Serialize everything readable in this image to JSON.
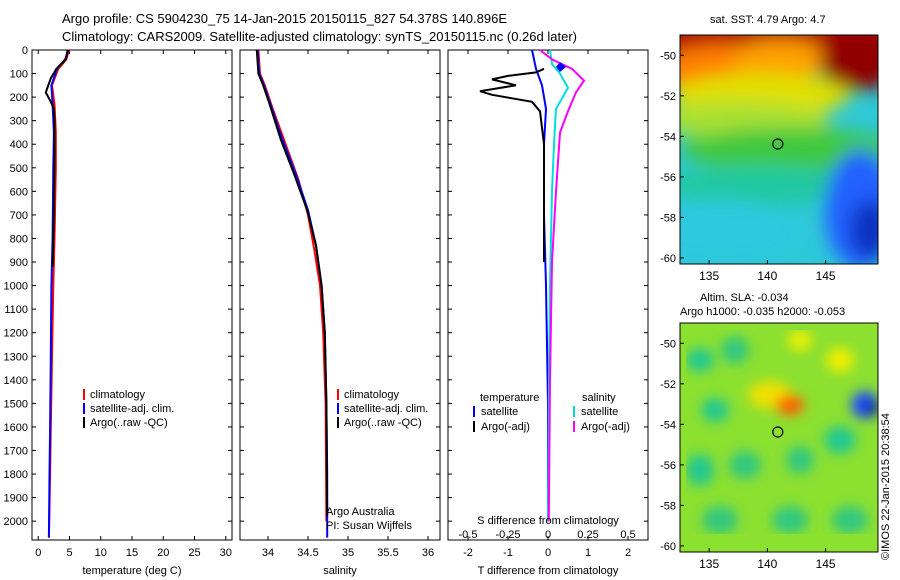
{
  "header": {
    "title_line1": "Argo profile: CS 5904230_75 14-Jan-2015 20150115_827 54.378S 140.896E",
    "title_line2": "Climatology: CARS2009. Satellite-adjusted climatology: synTS_20150115.nc (0.26d later)"
  },
  "colors": {
    "climatology": "#ff0000",
    "satellite": "#0000ff",
    "argo": "#000000",
    "sal_satellite": "#00dddd",
    "sal_argo": "#ff00ff"
  },
  "chart_data": [
    {
      "type": "line",
      "id": "temperature",
      "xlabel": "temperature (deg C)",
      "ylabel": "",
      "xlim": [
        -1,
        31
      ],
      "ylim": [
        2080,
        0
      ],
      "xticks": [
        0,
        5,
        10,
        15,
        20,
        25,
        30
      ],
      "yticks": [
        0,
        100,
        200,
        300,
        400,
        500,
        600,
        700,
        800,
        900,
        1000,
        1100,
        1200,
        1300,
        1400,
        1500,
        1600,
        1700,
        1800,
        1900,
        2000
      ],
      "legend": [
        "climatology",
        "satellite-adj. clim.",
        "Argo(..raw -QC)"
      ],
      "series": [
        {
          "name": "climatology",
          "color": "#ff0000",
          "x": [
            4.9,
            4.5,
            3.2,
            2.2,
            2.6,
            2.8,
            2.8,
            2.6,
            2.4,
            2.2,
            2.0,
            1.9,
            1.7
          ],
          "y": [
            0,
            40,
            80,
            150,
            230,
            350,
            500,
            800,
            1000,
            1300,
            1600,
            1800,
            2070
          ]
        },
        {
          "name": "satellite-adj. clim.",
          "color": "#0000ff",
          "x": [
            4.8,
            4.3,
            3.0,
            2.1,
            2.3,
            2.5,
            2.4,
            2.3,
            2.1,
            2.0,
            1.9,
            1.8,
            1.7
          ],
          "y": [
            0,
            40,
            80,
            150,
            230,
            350,
            500,
            800,
            1000,
            1300,
            1600,
            1800,
            2070
          ]
        },
        {
          "name": "Argo(..raw -QC)",
          "color": "#000000",
          "x": [
            4.7,
            4.4,
            2.9,
            2.0,
            1.2,
            1.6,
            2.0,
            2.5,
            2.6,
            2.6,
            2.5,
            2.3
          ],
          "y": [
            0,
            40,
            80,
            120,
            180,
            200,
            220,
            250,
            300,
            450,
            700,
            920
          ]
        }
      ]
    },
    {
      "type": "line",
      "id": "salinity",
      "xlabel": "salinity",
      "ylabel": "",
      "xlim": [
        33.65,
        36.15
      ],
      "ylim": [
        2080,
        0
      ],
      "xticks": [
        34,
        34.5,
        35,
        35.5,
        36
      ],
      "legend": [
        "climatology",
        "satellite-adj. clim.",
        "Argo(..raw -QC)"
      ],
      "annotation": [
        "Argo Australia",
        "PI: Susan Wijffels"
      ],
      "series": [
        {
          "name": "climatology",
          "color": "#ff0000",
          "x": [
            33.88,
            33.9,
            33.96,
            34.06,
            34.22,
            34.38,
            34.5,
            34.58,
            34.65,
            34.69,
            34.72,
            34.73
          ],
          "y": [
            0,
            100,
            150,
            250,
            400,
            550,
            700,
            850,
            1000,
            1200,
            1500,
            2000
          ]
        },
        {
          "name": "satellite-adj. clim.",
          "color": "#0000ff",
          "x": [
            33.87,
            33.89,
            33.95,
            34.03,
            34.18,
            34.35,
            34.5,
            34.6,
            34.67,
            34.71,
            34.73,
            34.74,
            34.74
          ],
          "y": [
            0,
            100,
            150,
            230,
            380,
            530,
            680,
            830,
            1000,
            1200,
            1500,
            1800,
            2070
          ]
        },
        {
          "name": "Argo(..raw -QC)",
          "color": "#000000",
          "x": [
            33.86,
            33.88,
            33.94,
            34.02,
            34.16,
            34.33,
            34.49,
            34.6,
            34.67,
            34.71,
            34.73,
            34.74
          ],
          "y": [
            0,
            100,
            150,
            230,
            380,
            530,
            680,
            830,
            1000,
            1200,
            1500,
            1980
          ]
        }
      ]
    },
    {
      "type": "line",
      "id": "difference",
      "xlabel": "T difference from climatology",
      "xlabel_top": "S difference from climatology",
      "xlim": [
        -2.5,
        2.5
      ],
      "ylim": [
        2080,
        0
      ],
      "xticks": [
        -2,
        -1,
        0,
        1,
        2
      ],
      "xtick_labels": [
        "-2",
        "-1",
        "0",
        "1",
        "2"
      ],
      "top_ticks": [
        -2,
        -1,
        0,
        1,
        2
      ],
      "top_tick_labels": [
        "-0.5",
        "-0.25",
        "0",
        "0.25",
        "0.5"
      ],
      "legend_left_title": "temperature",
      "legend_right_title": "salinity",
      "legend": [
        "satellite",
        "Argo(-adj)",
        "satellite",
        "Argo(-adj)"
      ],
      "series": [
        {
          "name": "temperature satellite",
          "color": "#0000ff",
          "x": [
            -0.4,
            -0.3,
            -0.15,
            -0.05,
            -0.1,
            -0.1,
            -0.05,
            0,
            0
          ],
          "y": [
            0,
            80,
            150,
            250,
            400,
            700,
            1000,
            1500,
            2000
          ]
        },
        {
          "name": "temperature Argo(-adj)",
          "color": "#000000",
          "x": [
            -0.1,
            -0.3,
            -1.0,
            -1.4,
            -0.8,
            -1.7,
            -1.4,
            -0.9,
            -0.4,
            -0.2,
            -0.1,
            -0.1
          ],
          "y": [
            80,
            95,
            110,
            125,
            150,
            175,
            190,
            205,
            220,
            260,
            400,
            900
          ]
        },
        {
          "name": "salinity satellite",
          "color": "#00dddd",
          "x": [
            0.05,
            0.1,
            0.3,
            0.5,
            0.2,
            0.15,
            0.1,
            0.05,
            0.02,
            0
          ],
          "y": [
            0,
            60,
            100,
            160,
            250,
            400,
            600,
            1000,
            1500,
            2000
          ]
        },
        {
          "name": "salinity Argo(-adj)",
          "color": "#ff00ff",
          "x": [
            -0.2,
            0.1,
            0.6,
            0.9,
            0.7,
            0.5,
            0.3,
            0.2,
            0.1,
            0.05,
            0.02
          ],
          "y": [
            0,
            40,
            80,
            130,
            180,
            260,
            350,
            600,
            900,
            1400,
            2000
          ]
        }
      ]
    },
    {
      "type": "heatmap",
      "id": "sst_map",
      "title": "sat. SST: 4.79 Argo: 4.7",
      "xlim": [
        132.5,
        149.5
      ],
      "ylim": [
        -60.3,
        -49
      ],
      "xticks": [
        135,
        140,
        145
      ],
      "yticks": [
        -50,
        -52,
        -54,
        -56,
        -58,
        -60
      ],
      "marker": {
        "lon": 140.896,
        "lat": -54.378
      }
    },
    {
      "type": "heatmap",
      "id": "sla_map",
      "title": "Altim. SLA: -0.034",
      "subtitle": "Argo h1000: -0.035 h2000: -0.053",
      "xlim": [
        132.5,
        149.5
      ],
      "ylim": [
        -60.3,
        -49
      ],
      "xticks": [
        135,
        140,
        145
      ],
      "yticks": [
        -50,
        -52,
        -54,
        -56,
        -58,
        -60
      ],
      "marker": {
        "lon": 140.896,
        "lat": -54.378
      }
    }
  ],
  "credit": "©IMOS 22-Jan-2015 20:38:54"
}
